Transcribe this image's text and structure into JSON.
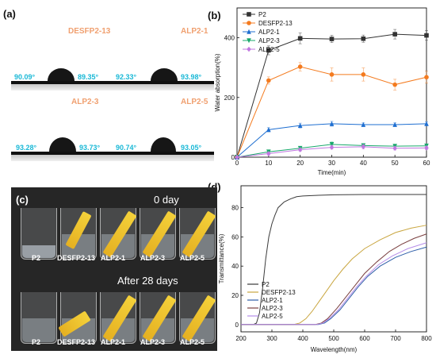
{
  "panels": {
    "a": {
      "letter": "(a)",
      "cells": [
        {
          "label": "DESFP2-13",
          "left_angle": "90.09°",
          "right_angle": "89.35°"
        },
        {
          "label": "ALP2-1",
          "left_angle": "92.33°",
          "right_angle": "93.98°"
        },
        {
          "label": "ALP2-3",
          "left_angle": "93.28°",
          "right_angle": "93.73°"
        },
        {
          "label": "ALP2-5",
          "left_angle": "90.74°",
          "right_angle": "93.05°"
        }
      ]
    },
    "b": {
      "letter": "(b)"
    },
    "c": {
      "letter": "(c)",
      "top_caption": "0 day",
      "bottom_caption": "After 28 days",
      "beakers": [
        "P2",
        "DESFP2-13",
        "ALP2-1",
        "ALP2-3",
        "ALP2-5"
      ]
    },
    "d": {
      "letter": "(d)"
    }
  },
  "colors": {
    "P2": "#333333",
    "DESFP2-13": "#f47b1f",
    "ALP2-1": "#1f6fd1",
    "ALP2-3": "#18a86b",
    "ALP2-5": "#c077e0",
    "d_P2": "#3a3a3a",
    "d_DESFP2-13": "#c9a640",
    "d_ALP2-1": "#2e5ea8",
    "d_ALP2-3": "#7a3f3f",
    "d_ALP2-5": "#b58ee8"
  },
  "chart_data": [
    {
      "type": "line",
      "panel": "b",
      "xlabel": "Time(min)",
      "ylabel": "Water absorption(%)",
      "xlim": [
        0,
        60
      ],
      "ylim": [
        0,
        500
      ],
      "xticks": [
        0,
        10,
        20,
        30,
        40,
        50,
        60
      ],
      "yticks": [
        0,
        200,
        400
      ],
      "legend": "top-left",
      "x": [
        0,
        10,
        20,
        30,
        40,
        50,
        60
      ],
      "series": [
        {
          "name": "P2",
          "marker": "square",
          "values": [
            0,
            358,
            398,
            396,
            397,
            412,
            408
          ],
          "err": [
            0,
            15,
            18,
            12,
            12,
            16,
            16
          ]
        },
        {
          "name": "DESFP2-13",
          "marker": "circle",
          "values": [
            0,
            257,
            303,
            277,
            277,
            243,
            268
          ],
          "err": [
            0,
            12,
            14,
            22,
            22,
            18,
            20
          ]
        },
        {
          "name": "ALP2-1",
          "marker": "triangle-up",
          "values": [
            0,
            92,
            106,
            112,
            109,
            109,
            112
          ],
          "err": [
            0,
            7,
            8,
            8,
            6,
            6,
            6
          ]
        },
        {
          "name": "ALP2-3",
          "marker": "triangle-down",
          "values": [
            0,
            18,
            30,
            43,
            39,
            37,
            38
          ],
          "err": [
            0,
            5,
            6,
            8,
            6,
            6,
            6
          ]
        },
        {
          "name": "ALP2-5",
          "marker": "diamond",
          "values": [
            0,
            12,
            25,
            33,
            35,
            30,
            31
          ],
          "err": [
            0,
            5,
            5,
            6,
            7,
            6,
            6
          ]
        }
      ]
    },
    {
      "type": "line",
      "panel": "d",
      "xlabel": "Wavelength(nm)",
      "ylabel": "Transmittance(%)",
      "xlim": [
        200,
        800
      ],
      "ylim": [
        -5,
        95
      ],
      "xticks": [
        200,
        300,
        400,
        500,
        600,
        700,
        800
      ],
      "yticks": [
        0,
        20,
        40,
        60,
        80
      ],
      "legend": "bottom-center",
      "series": [
        {
          "name": "P2",
          "points": [
            [
              200,
              0
            ],
            [
              240,
              0
            ],
            [
              250,
              1
            ],
            [
              260,
              8
            ],
            [
              270,
              25
            ],
            [
              280,
              45
            ],
            [
              290,
              60
            ],
            [
              300,
              69
            ],
            [
              310,
              75
            ],
            [
              320,
              80
            ],
            [
              340,
              84
            ],
            [
              360,
              86
            ],
            [
              380,
              87.5
            ],
            [
              400,
              88
            ],
            [
              450,
              88.5
            ],
            [
              500,
              88.8
            ],
            [
              600,
              89
            ],
            [
              700,
              89
            ],
            [
              800,
              89
            ]
          ]
        },
        {
          "name": "DESFP2-13",
          "points": [
            [
              200,
              0
            ],
            [
              370,
              0
            ],
            [
              390,
              1
            ],
            [
              410,
              4
            ],
            [
              430,
              9
            ],
            [
              450,
              15
            ],
            [
              470,
              21
            ],
            [
              500,
              30
            ],
            [
              530,
              38
            ],
            [
              560,
              45
            ],
            [
              600,
              52
            ],
            [
              650,
              58
            ],
            [
              700,
              63
            ],
            [
              750,
              66
            ],
            [
              800,
              68
            ]
          ]
        },
        {
          "name": "ALP2-1",
          "points": [
            [
              200,
              0
            ],
            [
              450,
              0
            ],
            [
              470,
              1
            ],
            [
              490,
              4
            ],
            [
              520,
              10
            ],
            [
              550,
              18
            ],
            [
              580,
              26
            ],
            [
              610,
              33
            ],
            [
              650,
              40
            ],
            [
              700,
              46
            ],
            [
              750,
              50
            ],
            [
              800,
              53
            ]
          ]
        },
        {
          "name": "ALP2-3",
          "points": [
            [
              200,
              0
            ],
            [
              440,
              0
            ],
            [
              460,
              1
            ],
            [
              480,
              4
            ],
            [
              510,
              11
            ],
            [
              540,
              19
            ],
            [
              570,
              27
            ],
            [
              600,
              35
            ],
            [
              640,
              43
            ],
            [
              680,
              50
            ],
            [
              720,
              55
            ],
            [
              760,
              59
            ],
            [
              800,
              62
            ]
          ]
        },
        {
          "name": "ALP2-5",
          "points": [
            [
              200,
              0
            ],
            [
              445,
              0
            ],
            [
              465,
              1
            ],
            [
              485,
              4
            ],
            [
              515,
              10
            ],
            [
              545,
              18
            ],
            [
              575,
              26
            ],
            [
              605,
              33
            ],
            [
              645,
              41
            ],
            [
              690,
              47
            ],
            [
              740,
              52
            ],
            [
              800,
              56
            ]
          ]
        }
      ]
    }
  ]
}
